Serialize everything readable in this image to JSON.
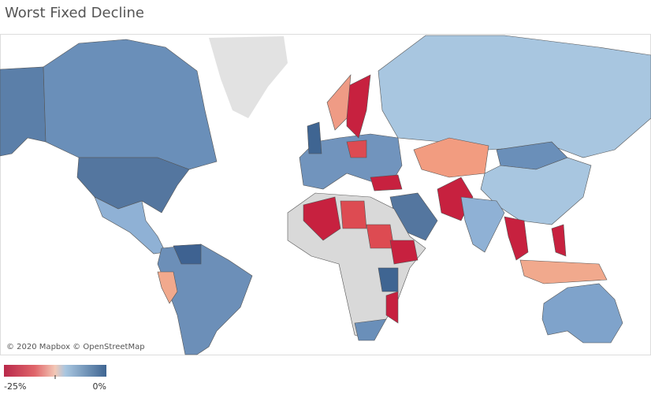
{
  "header": {
    "title": "Worst Fixed Decline"
  },
  "map": {
    "attribution": "© 2020 Mapbox © OpenStreetMap"
  },
  "legend": {
    "min_label": "-25%",
    "max_label": "0%"
  }
}
